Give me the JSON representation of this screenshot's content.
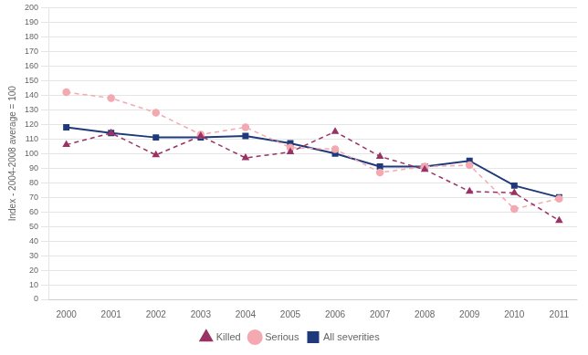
{
  "chart_data": {
    "type": "line",
    "x": [
      2000,
      2001,
      2002,
      2003,
      2004,
      2005,
      2006,
      2007,
      2008,
      2009,
      2010,
      2011
    ],
    "series": [
      {
        "name": "Killed",
        "color": "#993366",
        "marker": "triangle",
        "line_style": "dashed",
        "values": [
          106,
          114,
          99,
          112,
          97,
          101,
          115,
          98,
          89,
          74,
          73,
          54
        ]
      },
      {
        "name": "Serious",
        "color": "#f4a8b0",
        "marker": "circle",
        "line_style": "dashed",
        "values": [
          142,
          138,
          128,
          113,
          118,
          104,
          103,
          87,
          91,
          92,
          62,
          69
        ]
      },
      {
        "name": "All severities",
        "color": "#1f3a7a",
        "marker": "square",
        "line_style": "solid",
        "values": [
          118,
          114,
          111,
          111,
          112,
          107,
          100,
          91,
          91,
          95,
          78,
          70
        ]
      }
    ],
    "ylabel": "Index - 2004-2008 average = 100",
    "xlim": [
      1999.6,
      2011.4
    ],
    "xticks": [
      2000,
      2001,
      2002,
      2003,
      2004,
      2005,
      2006,
      2007,
      2008,
      2009,
      2010,
      2011
    ],
    "ylim": [
      0,
      200
    ],
    "yticks": [
      0,
      10,
      20,
      30,
      40,
      50,
      60,
      70,
      80,
      90,
      100,
      110,
      120,
      130,
      140,
      150,
      160,
      170,
      180,
      190,
      200
    ],
    "grid": "y",
    "legend": "bottom"
  }
}
